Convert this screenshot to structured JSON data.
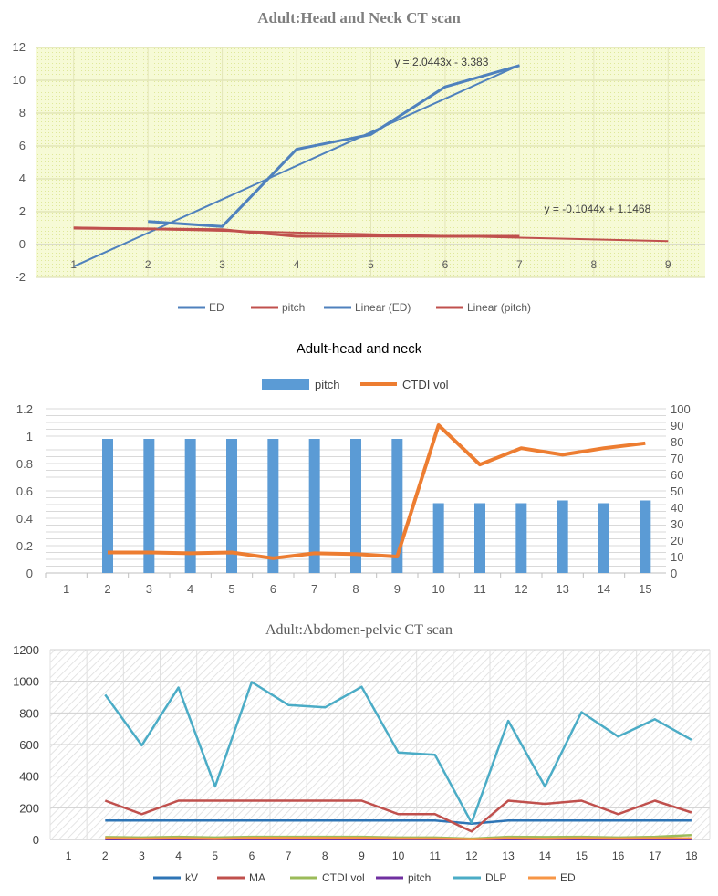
{
  "chart_data": [
    {
      "type": "line",
      "title": "Adult:Head and Neck CT scan",
      "xlabel": "",
      "ylabel": "",
      "x": [
        1,
        2,
        3,
        4,
        5,
        6,
        7,
        8,
        9
      ],
      "xlim": [
        1,
        9
      ],
      "ylim": [
        -2,
        12
      ],
      "yticks": [
        -2,
        0,
        2,
        4,
        6,
        8,
        10,
        12
      ],
      "grid": true,
      "legend_position": "bottom",
      "series": [
        {
          "name": "ED",
          "color": "#4f81bd",
          "x": [
            2,
            3,
            4,
            5,
            6,
            7
          ],
          "values": [
            1.4,
            1.1,
            5.8,
            6.7,
            9.6,
            10.9
          ]
        },
        {
          "name": "pitch",
          "color": "#c0504d",
          "x": [
            1,
            2,
            3,
            4,
            5,
            6,
            7
          ],
          "values": [
            1.0,
            0.95,
            0.9,
            0.5,
            0.52,
            0.5,
            0.5
          ]
        },
        {
          "name": "Linear (ED)",
          "color": "#4f81bd",
          "trend": {
            "slope": 2.0443,
            "intercept": -3.383,
            "from": 1,
            "to": 7
          }
        },
        {
          "name": "Linear (pitch)",
          "color": "#c0504d",
          "trend": {
            "slope": -0.1044,
            "intercept": 1.1468,
            "from": 1,
            "to": 9
          }
        }
      ],
      "annotations": [
        "y = 2.0443x - 3.383",
        "y = -0.1044x + 1.1468"
      ]
    },
    {
      "type": "bar",
      "title": "Adult-head and neck",
      "categories": [
        "1",
        "2",
        "3",
        "4",
        "5",
        "6",
        "7",
        "8",
        "9",
        "10",
        "11",
        "12",
        "13",
        "14",
        "15"
      ],
      "ylim": [
        0,
        1.2
      ],
      "yticks": [
        0,
        0.2,
        0.4,
        0.6,
        0.8,
        1,
        1.2
      ],
      "y2lim": [
        0,
        100
      ],
      "y2ticks": [
        0,
        10,
        20,
        30,
        40,
        50,
        60,
        70,
        80,
        90,
        100
      ],
      "grid": true,
      "legend_position": "top",
      "series": [
        {
          "name": "pitch",
          "kind": "bar",
          "axis": "left",
          "color": "#5b9bd5",
          "values": [
            null,
            0.98,
            0.98,
            0.98,
            0.98,
            0.98,
            0.98,
            0.98,
            0.98,
            0.51,
            0.51,
            0.51,
            0.53,
            0.51,
            0.53
          ]
        },
        {
          "name": "CTDI vol",
          "kind": "line",
          "axis": "right",
          "color": "#ed7d31",
          "values": [
            null,
            12.5,
            12.5,
            12,
            12.5,
            9,
            12,
            11.5,
            10,
            90,
            66,
            76,
            72,
            76,
            79
          ]
        }
      ]
    },
    {
      "type": "line",
      "title": "Adult:Abdomen-pelvic  CT scan",
      "categories": [
        "1",
        "2",
        "3",
        "4",
        "5",
        "6",
        "7",
        "8",
        "9",
        "10",
        "11",
        "12",
        "13",
        "14",
        "15",
        "16",
        "17",
        "18"
      ],
      "ylim": [
        0,
        1200
      ],
      "yticks": [
        0,
        200,
        400,
        600,
        800,
        1000,
        1200
      ],
      "grid": true,
      "legend_position": "bottom",
      "series": [
        {
          "name": "kV",
          "color": "#2e75b6",
          "values": [
            null,
            120,
            120,
            120,
            120,
            120,
            120,
            120,
            120,
            120,
            120,
            100,
            120,
            120,
            120,
            120,
            120,
            120
          ]
        },
        {
          "name": "MA",
          "color": "#c0504d",
          "values": [
            null,
            245,
            160,
            245,
            245,
            245,
            245,
            245,
            245,
            160,
            160,
            50,
            245,
            225,
            245,
            160,
            245,
            170
          ]
        },
        {
          "name": "CTDI vol",
          "color": "#9bbb59",
          "values": [
            null,
            15,
            12,
            17,
            12,
            17,
            17,
            17,
            17,
            12,
            12,
            5,
            17,
            15,
            17,
            12,
            17,
            27
          ]
        },
        {
          "name": "pitch",
          "color": "#7030a0",
          "values": [
            null,
            1,
            1,
            1,
            1,
            1,
            1,
            1,
            1,
            1,
            1,
            1,
            1,
            1,
            1,
            1,
            1,
            1
          ]
        },
        {
          "name": "DLP",
          "color": "#4bacc6",
          "values": [
            null,
            915,
            595,
            960,
            335,
            995,
            850,
            835,
            965,
            550,
            535,
            105,
            750,
            335,
            805,
            650,
            760,
            630
          ]
        },
        {
          "name": "ED",
          "color": "#f79646",
          "values": [
            null,
            8,
            5,
            8,
            4,
            9,
            9,
            9,
            9,
            6,
            6,
            2,
            8,
            4,
            8,
            6,
            8,
            7
          ]
        }
      ]
    }
  ]
}
